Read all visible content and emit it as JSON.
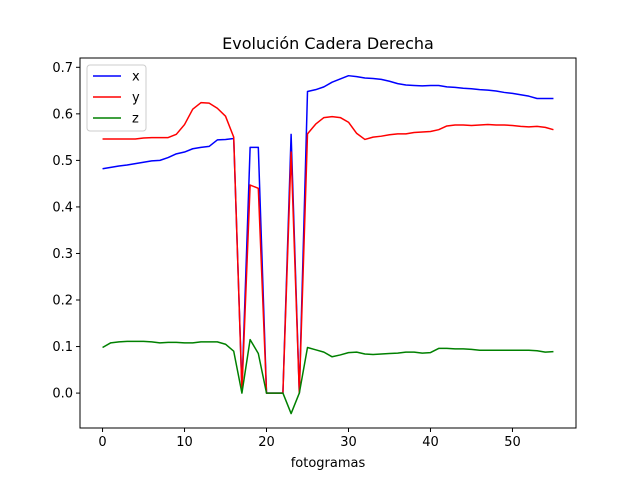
{
  "chart_data": {
    "type": "line",
    "title": "Evolución Cadera Derecha",
    "xlabel": "fotogramas",
    "ylabel": "",
    "xlim": [
      -2.75,
      57.75
    ],
    "ylim": [
      -0.075,
      0.72
    ],
    "xticks": [
      0,
      10,
      20,
      30,
      40,
      50
    ],
    "xtick_labels": [
      "0",
      "10",
      "20",
      "30",
      "40",
      "50"
    ],
    "yticks": [
      0.0,
      0.1,
      0.2,
      0.3,
      0.4,
      0.5,
      0.6,
      0.7
    ],
    "ytick_labels": [
      "0.0",
      "0.1",
      "0.2",
      "0.3",
      "0.4",
      "0.5",
      "0.6",
      "0.7"
    ],
    "grid": false,
    "legend_position": "top-left",
    "x": [
      0,
      1,
      2,
      3,
      4,
      5,
      6,
      7,
      8,
      9,
      10,
      11,
      12,
      13,
      14,
      15,
      16,
      17,
      18,
      19,
      20,
      21,
      22,
      23,
      24,
      25,
      26,
      27,
      28,
      29,
      30,
      31,
      32,
      33,
      34,
      35,
      36,
      37,
      38,
      39,
      40,
      41,
      42,
      43,
      44,
      45,
      46,
      47,
      48,
      49,
      50,
      51,
      52,
      53,
      54,
      55
    ],
    "series": [
      {
        "name": "x",
        "color": "#0000ff",
        "values": [
          0.482,
          0.485,
          0.488,
          0.49,
          0.493,
          0.496,
          0.499,
          0.5,
          0.506,
          0.514,
          0.518,
          0.525,
          0.528,
          0.53,
          0.544,
          0.545,
          0.547,
          0.01,
          0.528,
          0.528,
          0.0,
          0.0,
          0.0,
          0.556,
          0.0,
          0.648,
          0.652,
          0.658,
          0.668,
          0.675,
          0.682,
          0.68,
          0.677,
          0.676,
          0.674,
          0.67,
          0.665,
          0.662,
          0.661,
          0.66,
          0.661,
          0.661,
          0.658,
          0.657,
          0.655,
          0.654,
          0.652,
          0.651,
          0.649,
          0.646,
          0.644,
          0.641,
          0.638,
          0.633,
          0.633,
          0.633
        ]
      },
      {
        "name": "y",
        "color": "#ff0000",
        "values": [
          0.546,
          0.546,
          0.546,
          0.546,
          0.546,
          0.548,
          0.549,
          0.549,
          0.549,
          0.556,
          0.577,
          0.61,
          0.624,
          0.623,
          0.612,
          0.595,
          0.55,
          0.005,
          0.447,
          0.44,
          0.0,
          0.0,
          0.0,
          0.518,
          0.0,
          0.557,
          0.578,
          0.592,
          0.594,
          0.592,
          0.582,
          0.558,
          0.545,
          0.55,
          0.552,
          0.555,
          0.557,
          0.557,
          0.56,
          0.561,
          0.562,
          0.566,
          0.574,
          0.576,
          0.576,
          0.575,
          0.576,
          0.577,
          0.576,
          0.576,
          0.575,
          0.573,
          0.572,
          0.573,
          0.571,
          0.566
        ]
      },
      {
        "name": "z",
        "color": "#008000",
        "values": [
          0.098,
          0.108,
          0.11,
          0.111,
          0.111,
          0.111,
          0.11,
          0.108,
          0.109,
          0.109,
          0.108,
          0.108,
          0.11,
          0.11,
          0.11,
          0.105,
          0.09,
          0.0,
          0.115,
          0.085,
          0.0,
          0.0,
          0.0,
          -0.044,
          0.0,
          0.098,
          0.093,
          0.088,
          0.078,
          0.082,
          0.087,
          0.088,
          0.084,
          0.083,
          0.084,
          0.085,
          0.086,
          0.088,
          0.088,
          0.086,
          0.087,
          0.096,
          0.096,
          0.095,
          0.095,
          0.094,
          0.092,
          0.092,
          0.092,
          0.092,
          0.092,
          0.092,
          0.092,
          0.091,
          0.088,
          0.089
        ]
      }
    ]
  }
}
